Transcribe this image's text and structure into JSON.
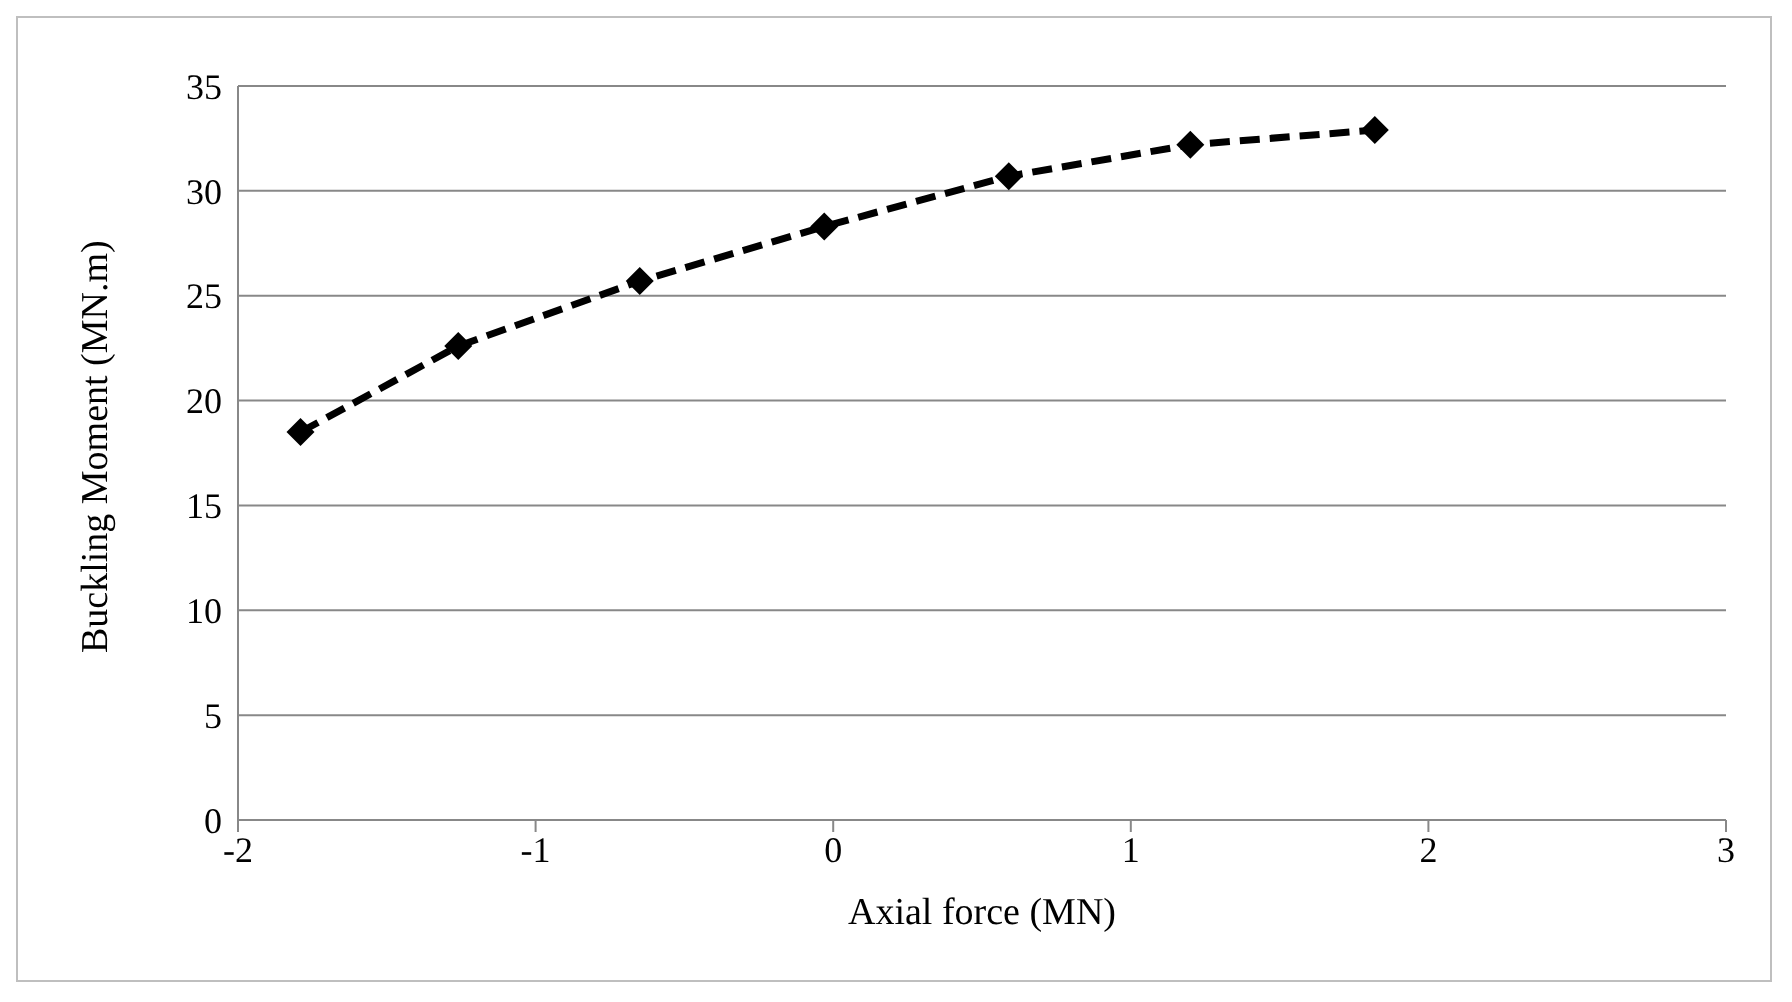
{
  "chart_data": {
    "type": "line",
    "xlabel": "Axial force (MN)",
    "ylabel": "Buckling Moment (MN.m)",
    "x": [
      -1.79,
      -1.26,
      -0.65,
      -0.03,
      0.59,
      1.2,
      1.82
    ],
    "series": [
      {
        "color": "#000000",
        "values": [
          18.5,
          22.6,
          25.7,
          28.3,
          30.7,
          32.2,
          32.9
        ]
      }
    ],
    "xlim": [
      -2,
      3
    ],
    "xticks": [
      -2,
      -1,
      0,
      1,
      2,
      3
    ],
    "ylim": [
      0,
      35
    ],
    "yticks": [
      0,
      5,
      10,
      15,
      20,
      25,
      30,
      35
    ],
    "grid": "y",
    "legend": false,
    "marker": "diamond",
    "line_style": "dashed"
  }
}
